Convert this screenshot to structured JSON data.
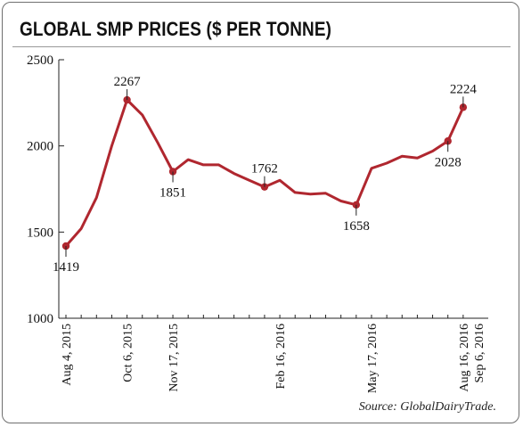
{
  "title": "GLOBAL SMP PRICES ($ PER TONNE)",
  "source": "Source: GlobalDairyTrade.",
  "chart_data": {
    "type": "line",
    "title": "GLOBAL SMP PRICES ($ PER TONNE)",
    "xlabel": "",
    "ylabel": "",
    "ylim": [
      1000,
      2500
    ],
    "yticks": [
      1000,
      1500,
      2000,
      2500
    ],
    "grid": false,
    "line_color": "#b0272f",
    "x_index_range": [
      0,
      27
    ],
    "xticks": [
      {
        "index": 0,
        "label": "Aug 4, 2015"
      },
      {
        "index": 4,
        "label": "Oct 6, 2015"
      },
      {
        "index": 7,
        "label": "Nov 17, 2015"
      },
      {
        "index": 14,
        "label": "Feb 16, 2016"
      },
      {
        "index": 20,
        "label": "May 17, 2016"
      },
      {
        "index": 26,
        "label": "Aug 16, 2016"
      },
      {
        "index": 27,
        "label": "Sep 6, 2016"
      }
    ],
    "series": [
      {
        "values": [
          1419,
          1520,
          1700,
          2000,
          2267,
          2180,
          2020,
          1851,
          1920,
          1890,
          1890,
          1840,
          1800,
          1762,
          1800,
          1730,
          1720,
          1725,
          1680,
          1658,
          1870,
          1900,
          1940,
          1930,
          1970,
          2028,
          2224
        ]
      }
    ],
    "labeled_points": [
      {
        "index": 0,
        "label": "1419",
        "pos": "below"
      },
      {
        "index": 4,
        "label": "2267",
        "pos": "above"
      },
      {
        "index": 7,
        "label": "1851",
        "pos": "below"
      },
      {
        "index": 13,
        "label": "1762",
        "pos": "above"
      },
      {
        "index": 19,
        "label": "1658",
        "pos": "below"
      },
      {
        "index": 25,
        "label": "2028",
        "pos": "below"
      },
      {
        "index": 26,
        "label": "2224",
        "pos": "above"
      }
    ]
  }
}
